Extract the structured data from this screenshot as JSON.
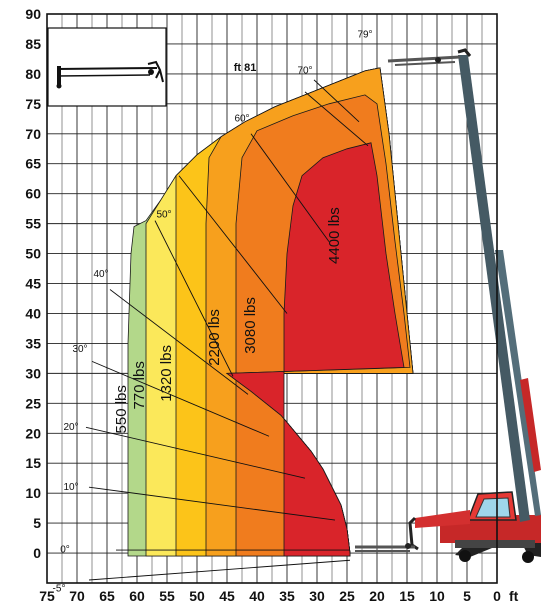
{
  "chart_data": {
    "type": "area",
    "title": "",
    "xlabel": "",
    "ylabel": "",
    "x_unit_label": "ft",
    "max_height_label": "ft 81",
    "xlim": [
      75,
      0
    ],
    "ylim": [
      -5,
      90
    ],
    "x_ticks": [
      "75",
      "70",
      "65",
      "60",
      "55",
      "50",
      "45",
      "40",
      "35",
      "30",
      "25",
      "20",
      "15",
      "10",
      "5",
      "0"
    ],
    "y_ticks": [
      "0",
      "5",
      "10",
      "15",
      "20",
      "25",
      "30",
      "35",
      "40",
      "45",
      "50",
      "55",
      "60",
      "65",
      "70",
      "75",
      "80",
      "85",
      "90"
    ],
    "grid": true,
    "zones": [
      {
        "label": "550 lbs",
        "color": "#b3d88a",
        "x_outer": 61.5,
        "y_top": 54.5
      },
      {
        "label": "770 lbs",
        "color": "#fbe85a",
        "x_outer": 58.5,
        "y_top": 55
      },
      {
        "label": "1320 lbs",
        "color": "#fcc419",
        "x_outer": 53.5,
        "y_top": 63
      },
      {
        "label": "2200 lbs",
        "color": "#f7a01d",
        "x_outer": 48.5,
        "y_top": 69
      },
      {
        "label": "3080 lbs",
        "color": "#f07c1e",
        "x_outer": 43.5,
        "y_top": 72
      },
      {
        "label": "4400 lbs",
        "color": "#d9242a",
        "x_outer": 35.5,
        "y_top": 66
      }
    ],
    "boom_angles": [
      "-5°",
      "0°",
      "10°",
      "20°",
      "30°",
      "40°",
      "50°",
      "60°",
      "70°",
      "79°"
    ]
  }
}
